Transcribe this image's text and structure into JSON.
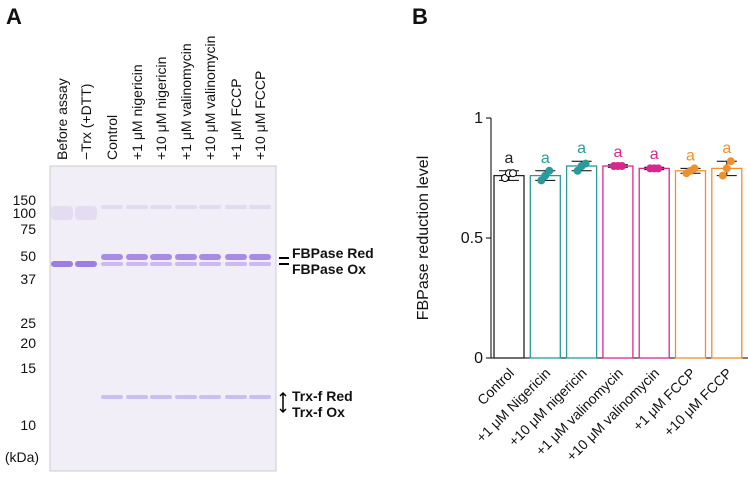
{
  "panel_a": {
    "letter": "A",
    "lanes": [
      "Before assay",
      "−Trx (+DTT)",
      "Control",
      "+1 μM nigericin",
      "+10 μM nigericin",
      "+1 μM valinomycin",
      "+10 μM valinomycin",
      "+1 μM FCCP",
      "+10 μM FCCP"
    ],
    "markers": [
      150,
      100,
      75,
      50,
      37,
      25,
      20,
      15,
      10
    ],
    "unit": "(kDa)",
    "bands": [
      "FBPase Red",
      "FBPase Ox",
      "Trx-f Red",
      "Trx-f Ox"
    ]
  },
  "chart_data": {
    "type": "bar",
    "letter": "B",
    "y_label": "FBPase reduction level",
    "categories": [
      "Control",
      "+1 μM Nigericin",
      "+10 μM nigericin",
      "+1 μM valinomycin",
      "+10 μM valinomycin",
      "+1 μM FCCP",
      "+10 μM FCCP"
    ],
    "values": [
      0.76,
      0.76,
      0.8,
      0.8,
      0.79,
      0.78,
      0.79
    ],
    "errors": [
      0.02,
      0.02,
      0.02,
      0.005,
      0.005,
      0.01,
      0.03
    ],
    "points": [
      [
        0.75,
        0.77,
        0.77
      ],
      [
        0.74,
        0.76,
        0.78
      ],
      [
        0.78,
        0.8,
        0.81
      ],
      [
        0.8,
        0.8,
        0.8
      ],
      [
        0.79,
        0.79,
        0.79
      ],
      [
        0.77,
        0.78,
        0.79
      ],
      [
        0.76,
        0.79,
        0.82
      ]
    ],
    "colors": [
      "#222222",
      "#2a9a9a",
      "#2a9a9a",
      "#d8288c",
      "#d8288c",
      "#f0902a",
      "#f0902a"
    ],
    "annotations": [
      "a",
      "a",
      "a",
      "a",
      "a",
      "a",
      "a"
    ],
    "ylim": [
      0,
      1
    ],
    "yticks": [
      0,
      {
        "value": 0.5,
        "label": "0.5"
      },
      1
    ]
  }
}
